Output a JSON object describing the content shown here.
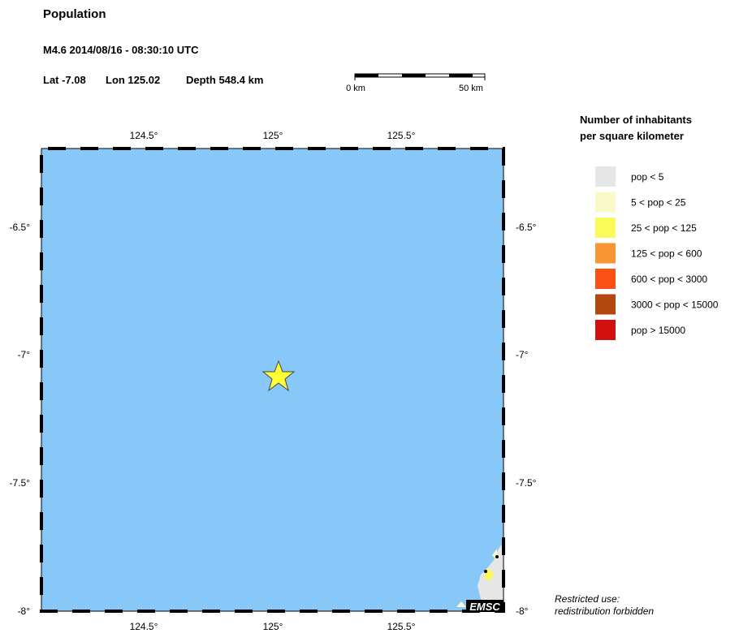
{
  "header": {
    "title": "Population",
    "event": "M4.6  2014/08/16 - 08:30:10 UTC",
    "lat": "Lat -7.08",
    "lon": "Lon 125.02",
    "depth": "Depth 548.4 km"
  },
  "scale_bar": {
    "start": "0 km",
    "end": "50 km"
  },
  "map": {
    "lon_labels": [
      "124.5°",
      "125°",
      "125.5°"
    ],
    "lat_labels": [
      "-6.5°",
      "-7°",
      "-7.5°",
      "-8°"
    ],
    "logo": "EMSC"
  },
  "legend": {
    "title": [
      "Number of inhabitants",
      "per square kilometer"
    ],
    "items": [
      {
        "label": "pop < 5",
        "color": "#e6e6e6"
      },
      {
        "label": "5 < pop < 25",
        "color": "#fafac8"
      },
      {
        "label": "25 < pop < 125",
        "color": "#fafa5a"
      },
      {
        "label": "125 < pop < 600",
        "color": "#f99633"
      },
      {
        "label": "600 < pop < 3000",
        "color": "#fa5014"
      },
      {
        "label": "3000 < pop < 15000",
        "color": "#b4460f"
      },
      {
        "label": "pop > 15000",
        "color": "#d20f0f"
      }
    ]
  },
  "note": [
    "Restricted use:",
    "redistribution forbidden"
  ]
}
